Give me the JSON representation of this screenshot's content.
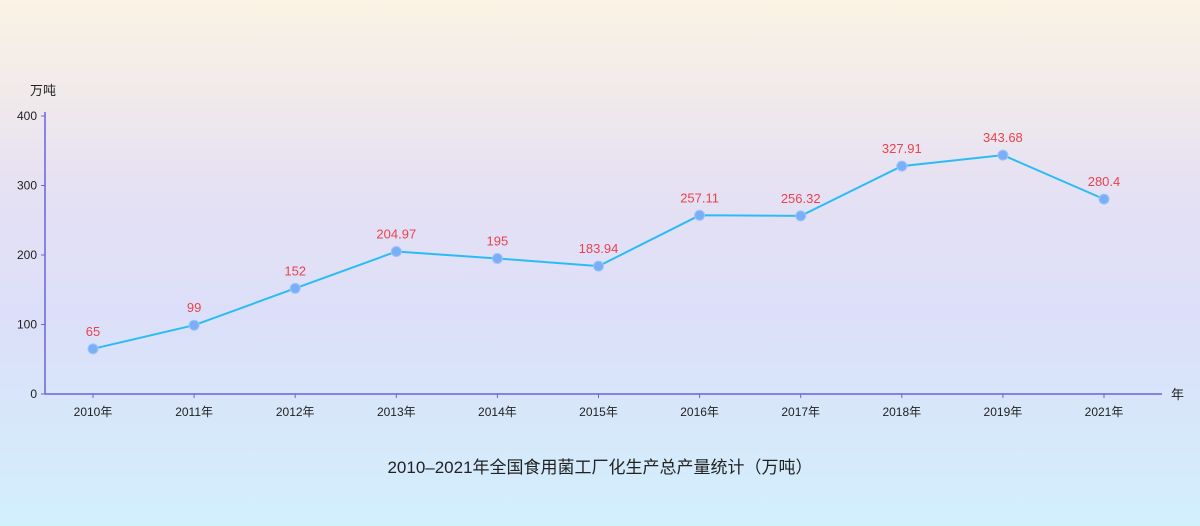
{
  "chart_data": {
    "type": "line",
    "title": "2010–2021年全国食用菌工厂化生产总产量统计（万吨）",
    "xlabel": "年",
    "ylabel": "万吨",
    "categories": [
      "2010年",
      "2011年",
      "2012年",
      "2013年",
      "2014年",
      "2015年",
      "2016年",
      "2017年",
      "2018年",
      "2019年",
      "2021年"
    ],
    "series": [
      {
        "values": [
          65,
          99,
          152,
          204.97,
          195,
          183.94,
          257.11,
          256.32,
          327.91,
          343.68,
          280.4
        ],
        "labels": [
          "65",
          "99",
          "152",
          "204.97",
          "195",
          "183.94",
          "257.11",
          "256.32",
          "327.91",
          "343.68",
          "280.4"
        ]
      }
    ],
    "ylim": [
      0,
      400
    ],
    "yticks": [
      0,
      100,
      200,
      300,
      400
    ],
    "grid": false,
    "colors": {
      "line": "#2bbcf5",
      "marker": "#7aaef7",
      "label": "#e8434f",
      "axis": "#6a64d8"
    }
  }
}
